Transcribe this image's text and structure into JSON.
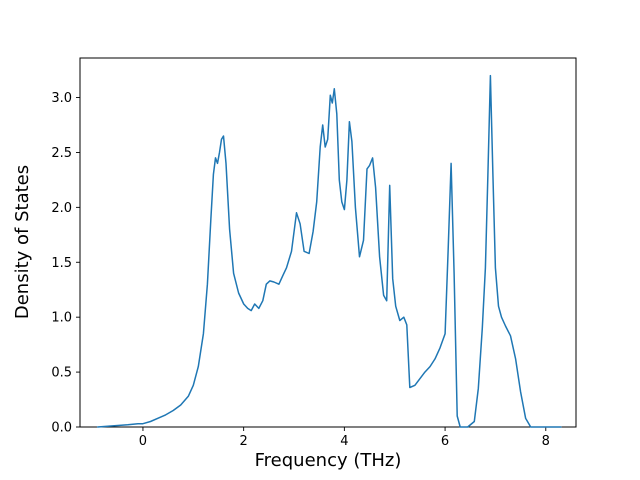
{
  "chart_data": {
    "type": "line",
    "title": "",
    "xlabel": "Frequency (THz)",
    "ylabel": "Density of States",
    "xlim": [
      -1.25,
      8.6
    ],
    "ylim": [
      0,
      3.36
    ],
    "grid": false,
    "legend": null,
    "line_color": "#1f77b4",
    "line_width": 1.5,
    "axes_color": "#000000",
    "xticks": {
      "values": [
        0,
        2,
        4,
        6,
        8
      ],
      "labels": [
        "0",
        "2",
        "4",
        "6",
        "8"
      ]
    },
    "yticks": {
      "values": [
        0,
        0.5,
        1,
        1.5,
        2,
        2.5,
        3
      ],
      "labels": [
        "0.0",
        "0.5",
        "1.0",
        "1.5",
        "2.0",
        "2.5",
        "3.0"
      ]
    },
    "x": [
      -0.9,
      -0.6,
      -0.3,
      -0.1,
      0.0,
      0.15,
      0.3,
      0.45,
      0.6,
      0.75,
      0.9,
      1.0,
      1.1,
      1.2,
      1.28,
      1.35,
      1.4,
      1.44,
      1.48,
      1.52,
      1.56,
      1.6,
      1.65,
      1.72,
      1.8,
      1.9,
      2.0,
      2.08,
      2.15,
      2.22,
      2.3,
      2.38,
      2.45,
      2.52,
      2.6,
      2.7,
      2.78,
      2.85,
      2.95,
      3.05,
      3.12,
      3.2,
      3.3,
      3.38,
      3.45,
      3.52,
      3.57,
      3.62,
      3.67,
      3.72,
      3.76,
      3.8,
      3.85,
      3.9,
      3.95,
      4.0,
      4.05,
      4.1,
      4.15,
      4.22,
      4.3,
      4.38,
      4.45,
      4.5,
      4.56,
      4.62,
      4.7,
      4.78,
      4.84,
      4.9,
      4.96,
      5.02,
      5.1,
      5.18,
      5.24,
      5.3,
      5.4,
      5.5,
      5.6,
      5.7,
      5.8,
      5.9,
      6.0,
      6.06,
      6.12,
      6.18,
      6.24,
      6.3,
      6.45,
      6.58,
      6.66,
      6.74,
      6.8,
      6.85,
      6.9,
      6.95,
      7.0,
      7.06,
      7.12,
      7.2,
      7.3,
      7.4,
      7.5,
      7.6,
      7.7,
      7.9,
      8.1,
      8.3
    ],
    "y": [
      0.0,
      0.01,
      0.02,
      0.03,
      0.03,
      0.05,
      0.08,
      0.11,
      0.15,
      0.2,
      0.28,
      0.38,
      0.55,
      0.85,
      1.3,
      1.9,
      2.3,
      2.45,
      2.4,
      2.5,
      2.62,
      2.65,
      2.4,
      1.8,
      1.4,
      1.22,
      1.12,
      1.08,
      1.06,
      1.12,
      1.08,
      1.15,
      1.3,
      1.33,
      1.32,
      1.3,
      1.38,
      1.45,
      1.6,
      1.95,
      1.85,
      1.6,
      1.58,
      1.78,
      2.05,
      2.55,
      2.75,
      2.55,
      2.62,
      3.02,
      2.95,
      3.08,
      2.85,
      2.25,
      2.05,
      1.98,
      2.25,
      2.78,
      2.6,
      2.0,
      1.55,
      1.7,
      2.35,
      2.38,
      2.45,
      2.18,
      1.55,
      1.2,
      1.15,
      2.2,
      1.35,
      1.1,
      0.97,
      1.0,
      0.93,
      0.36,
      0.38,
      0.44,
      0.5,
      0.55,
      0.62,
      0.72,
      0.85,
      1.6,
      2.4,
      1.4,
      0.1,
      0.0,
      0.0,
      0.05,
      0.35,
      0.9,
      1.45,
      2.3,
      3.2,
      2.3,
      1.45,
      1.1,
      1.0,
      0.92,
      0.83,
      0.62,
      0.32,
      0.08,
      0.0,
      0.0,
      0.0,
      0.0
    ]
  }
}
